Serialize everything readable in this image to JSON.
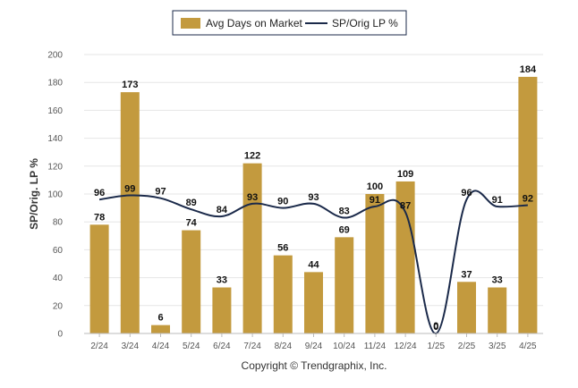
{
  "chart_data": {
    "type": "bar",
    "categories": [
      "2/24",
      "3/24",
      "4/24",
      "5/24",
      "6/24",
      "7/24",
      "8/24",
      "9/24",
      "10/24",
      "11/24",
      "12/24",
      "1/25",
      "2/25",
      "3/25",
      "4/25"
    ],
    "series": [
      {
        "name": "Avg Days on Market",
        "type": "bar",
        "color": "#c39a3e",
        "values": [
          78,
          173,
          6,
          74,
          33,
          122,
          56,
          44,
          69,
          100,
          109,
          0,
          37,
          33,
          184
        ]
      },
      {
        "name": "SP/Orig LP %",
        "type": "line",
        "color": "#1b2a4a",
        "values": [
          96,
          99,
          97,
          89,
          84,
          93,
          90,
          93,
          83,
          91,
          87,
          0,
          96,
          91,
          92
        ]
      }
    ],
    "ylabel": "SP/Orig. LP %",
    "ylim": [
      0,
      200
    ],
    "yticks": [
      0,
      20,
      40,
      60,
      80,
      100,
      120,
      140,
      160,
      180,
      200
    ],
    "grid": true,
    "legend_position": "top-center"
  },
  "footer": {
    "copyright": "Copyright © Trendgraphix, Inc."
  }
}
